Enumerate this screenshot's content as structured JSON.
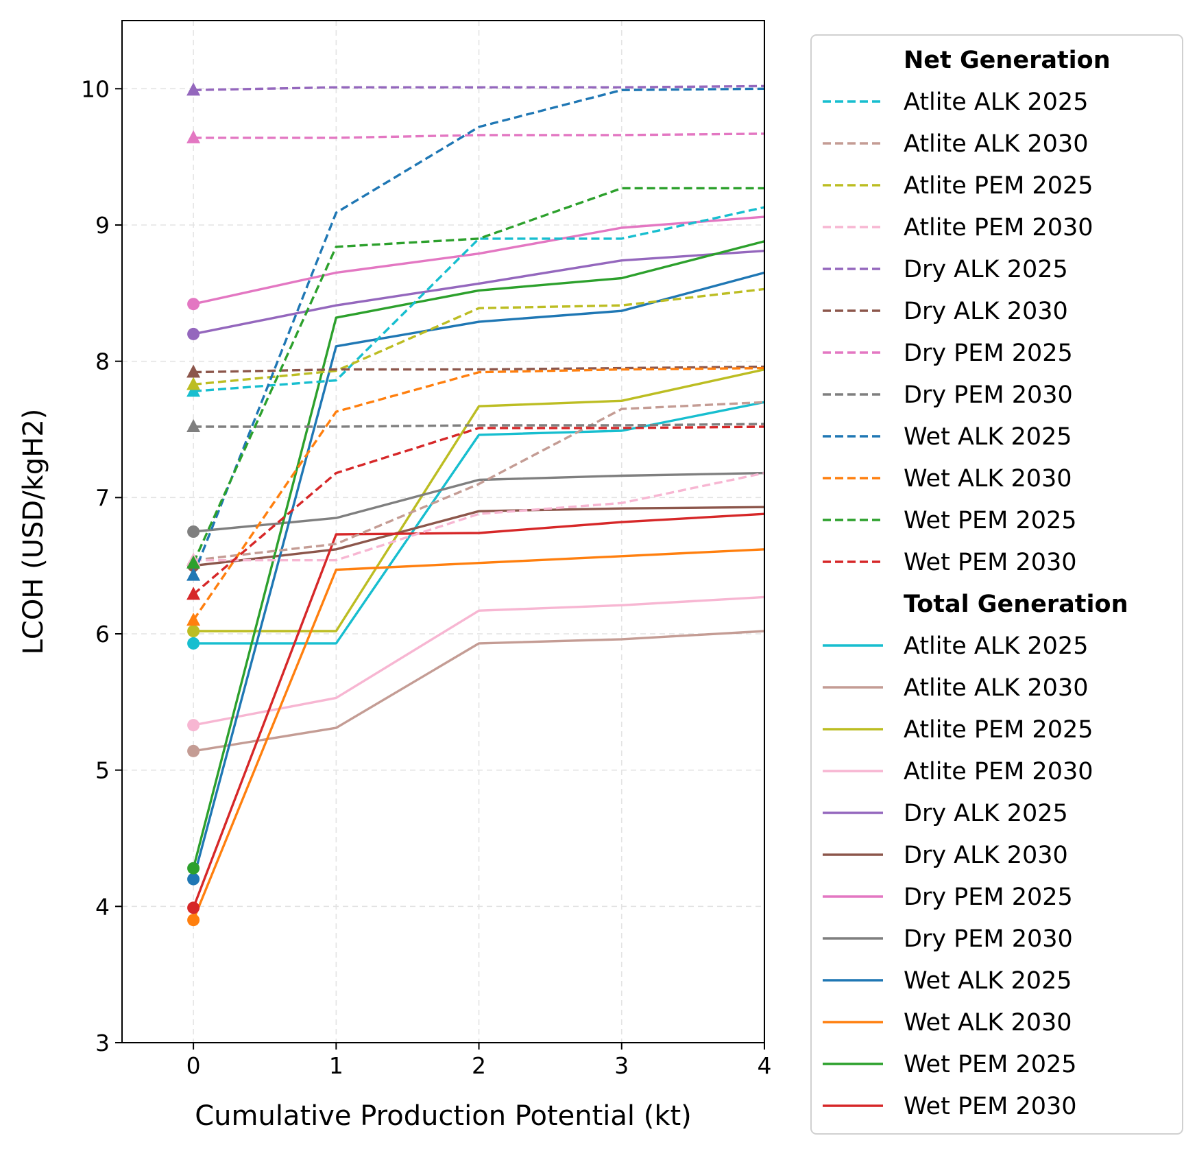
{
  "chart_data": {
    "type": "line",
    "xlabel": "Cumulative Production Potential (kt)",
    "ylabel": "LCOH (USD/kgH2)",
    "xlim": [
      -0.5,
      4
    ],
    "ylim": [
      3,
      10.5
    ],
    "x_ticks": [
      0,
      1,
      2,
      3,
      4
    ],
    "y_ticks": [
      3,
      4,
      5,
      6,
      7,
      8,
      9,
      10
    ],
    "x_tick_labels": [
      "0",
      "1",
      "2",
      "3",
      "4"
    ],
    "y_tick_labels": [
      "3",
      "4",
      "5",
      "6",
      "7",
      "8",
      "9",
      "10"
    ],
    "grid": true,
    "legend_position": "outside-right",
    "x": [
      0,
      1,
      2,
      3,
      4
    ],
    "groups": [
      {
        "title": "Net Generation",
        "line_style": "dashed",
        "start_marker": "triangle",
        "series": [
          {
            "name": "Atlite ALK 2025",
            "color": "#17becf",
            "values": [
              7.78,
              7.86,
              8.9,
              8.9,
              9.13
            ]
          },
          {
            "name": "Atlite ALK 2030",
            "color": "#c49c94",
            "values": [
              6.54,
              6.66,
              7.1,
              7.65,
              7.7
            ]
          },
          {
            "name": "Atlite PEM 2025",
            "color": "#bcbd22",
            "values": [
              7.83,
              7.93,
              8.39,
              8.41,
              8.53
            ]
          },
          {
            "name": "Atlite PEM 2030",
            "color": "#f7b6d2",
            "values": [
              6.54,
              6.54,
              6.88,
              6.96,
              7.18
            ]
          },
          {
            "name": "Dry ALK 2025",
            "color": "#9467bd",
            "values": [
              9.99,
              10.01,
              10.01,
              10.01,
              10.02
            ]
          },
          {
            "name": "Dry ALK 2030",
            "color": "#8c564b",
            "values": [
              7.92,
              7.94,
              7.94,
              7.95,
              7.96
            ]
          },
          {
            "name": "Dry PEM 2025",
            "color": "#e377c2",
            "values": [
              9.64,
              9.64,
              9.66,
              9.66,
              9.67
            ]
          },
          {
            "name": "Dry PEM 2030",
            "color": "#7f7f7f",
            "values": [
              7.52,
              7.52,
              7.53,
              7.53,
              7.54
            ]
          },
          {
            "name": "Wet ALK 2025",
            "color": "#1f77b4",
            "values": [
              6.43,
              9.09,
              9.72,
              9.99,
              10.0
            ]
          },
          {
            "name": "Wet ALK 2030",
            "color": "#ff7f0e",
            "values": [
              6.1,
              7.63,
              7.92,
              7.94,
              7.95
            ]
          },
          {
            "name": "Wet PEM 2025",
            "color": "#2ca02c",
            "values": [
              6.52,
              8.84,
              8.9,
              9.27,
              9.27
            ]
          },
          {
            "name": "Wet PEM 2030",
            "color": "#d62728",
            "values": [
              6.29,
              7.18,
              7.51,
              7.51,
              7.52
            ]
          }
        ]
      },
      {
        "title": "Total Generation",
        "line_style": "solid",
        "start_marker": "circle",
        "series": [
          {
            "name": "Atlite ALK 2025",
            "color": "#17becf",
            "values": [
              5.93,
              5.93,
              7.46,
              7.49,
              7.7
            ]
          },
          {
            "name": "Atlite ALK 2030",
            "color": "#c49c94",
            "values": [
              5.14,
              5.31,
              5.93,
              5.96,
              6.02
            ]
          },
          {
            "name": "Atlite PEM 2025",
            "color": "#bcbd22",
            "values": [
              6.02,
              6.02,
              7.67,
              7.71,
              7.94
            ]
          },
          {
            "name": "Atlite PEM 2030",
            "color": "#f7b6d2",
            "values": [
              5.33,
              5.53,
              6.17,
              6.21,
              6.27
            ]
          },
          {
            "name": "Dry ALK 2025",
            "color": "#9467bd",
            "values": [
              8.2,
              8.41,
              8.57,
              8.74,
              8.81
            ]
          },
          {
            "name": "Dry ALK 2030",
            "color": "#8c564b",
            "values": [
              6.5,
              6.62,
              6.9,
              6.92,
              6.93
            ]
          },
          {
            "name": "Dry PEM 2025",
            "color": "#e377c2",
            "values": [
              8.42,
              8.65,
              8.79,
              8.98,
              9.06
            ]
          },
          {
            "name": "Dry PEM 2030",
            "color": "#7f7f7f",
            "values": [
              6.75,
              6.85,
              7.13,
              7.16,
              7.18
            ]
          },
          {
            "name": "Wet ALK 2025",
            "color": "#1f77b4",
            "values": [
              4.2,
              8.11,
              8.29,
              8.37,
              8.65
            ]
          },
          {
            "name": "Wet ALK 2030",
            "color": "#ff7f0e",
            "values": [
              3.9,
              6.47,
              6.52,
              6.57,
              6.62
            ]
          },
          {
            "name": "Wet PEM 2025",
            "color": "#2ca02c",
            "values": [
              4.28,
              8.32,
              8.52,
              8.61,
              8.88
            ]
          },
          {
            "name": "Wet PEM 2030",
            "color": "#d62728",
            "values": [
              3.99,
              6.73,
              6.74,
              6.82,
              6.88
            ]
          }
        ]
      }
    ]
  }
}
